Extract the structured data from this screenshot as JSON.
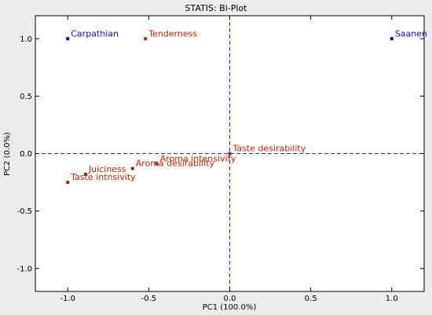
{
  "chart_data": {
    "type": "scatter",
    "title": "STATIS: Bi-Plot",
    "xlabel": "PC1 (100.0%)",
    "ylabel": "PC2 (0.0%)",
    "xlim": [
      -1.2,
      1.2
    ],
    "ylim": [
      -1.2,
      1.2
    ],
    "xticks": [
      -1.0,
      -0.5,
      0.0,
      0.5,
      1.0
    ],
    "xtick_labels": [
      "-1.0",
      "-0.5",
      "0.0",
      "0.5",
      "1.0"
    ],
    "yticks": [
      1.0,
      0.5,
      0.0,
      -0.5,
      -1.0
    ],
    "ytick_labels": [
      "1.0",
      "0.5",
      "0.0",
      "-0.5",
      "-1.0"
    ],
    "grid": false,
    "reference_lines": {
      "x": 0.0,
      "y": 0.0,
      "style": "dashed",
      "color": "#3333cc"
    },
    "colors": {
      "observations": "#1010cc",
      "variables": "#cc2200",
      "variable_marker": "#8b2b1a",
      "observation_marker": "#0a0a6a"
    },
    "observations": [
      {
        "label": "Carpathian",
        "x": -1.0,
        "y": 1.0
      },
      {
        "label": "Saanen",
        "x": 1.0,
        "y": 1.0
      }
    ],
    "variables": [
      {
        "label": "Tenderness",
        "x": -0.52,
        "y": 1.0
      },
      {
        "label": "Taste desirability",
        "x": 0.0,
        "y": 0.0
      },
      {
        "label": "Aroma intensivity",
        "x": -0.45,
        "y": -0.09
      },
      {
        "label": "Aroma desirability",
        "x": -0.6,
        "y": -0.13
      },
      {
        "label": "Juiciness",
        "x": -0.89,
        "y": -0.18
      },
      {
        "label": "Taste intnsivity",
        "x": -1.0,
        "y": -0.25
      }
    ]
  }
}
